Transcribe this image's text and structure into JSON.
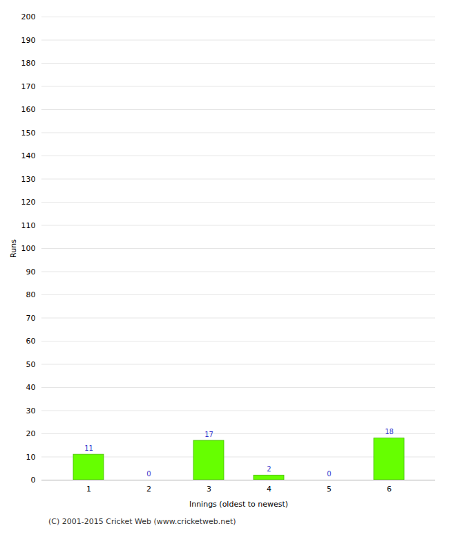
{
  "chart_data": {
    "type": "bar",
    "categories": [
      1,
      2,
      3,
      4,
      5,
      6
    ],
    "values": [
      11,
      0,
      17,
      2,
      0,
      18
    ],
    "color": "#66ff00",
    "xlabel": "Innings (oldest to newest)",
    "ylabel": "Runs",
    "ylim": [
      0,
      200
    ],
    "yticks": [
      0,
      10,
      20,
      30,
      40,
      50,
      60,
      70,
      80,
      90,
      100,
      110,
      120,
      130,
      140,
      150,
      160,
      170,
      180,
      190,
      200
    ],
    "grid": true,
    "data_labels": true,
    "annotations": [
      "(C) 2001-2015 Cricket Web (www.cricketweb.net)"
    ]
  }
}
